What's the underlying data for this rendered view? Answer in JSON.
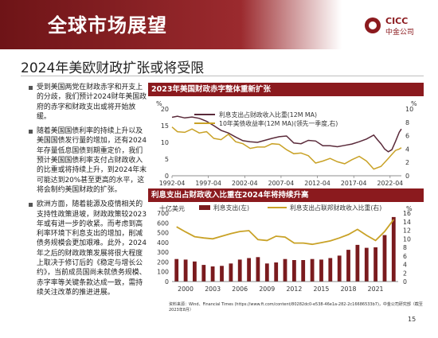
{
  "header": {
    "title": "全球市场展望",
    "logo_en": "CICC",
    "logo_cn": "中金公司"
  },
  "subtitle": "2024年美欧财政扩张或将受限",
  "bullets": [
    "受到美国两党在财政赤字和开支上的分歧，我们预计2024财年美国政府的赤字和财政支出或将开始放缓。",
    "随着美国国债利率的持续上升以及美国国债发行量的增加，还有2024年存量低息国债到期重定价，我们预计美国国债利率支付占财政收入的比重或将持续上升，到2024年末可能达到20%甚至更高的水平，这将会制约美国财政的扩张。",
    "欧洲方面，随着能源及疫情相关的支持性政策退坡，财政政策较2023年或有进一步的收紧。而考虑到高利率环境下利息支出的增加，削减债务规模会更加艰难。此外，2024年之后的财政政策发展将很大程度上取决于修订后的《稳定与增长公约》，当前成员国尚未就债务规模、赤字率等关键条款达成一致，需持续关注改革的推进进展。"
  ],
  "chart_data": [
    {
      "type": "line",
      "title": "2023年美国财政赤字整体重新扩张",
      "left_unit": "%",
      "right_unit": "%",
      "ylim_left": [
        0,
        20
      ],
      "yticks_left": [
        0,
        5,
        10,
        15,
        20
      ],
      "ylim_right": [
        0,
        10
      ],
      "yticks_right": [
        0,
        2,
        4,
        6,
        8,
        10
      ],
      "x_range": [
        1992.25,
        2023.8
      ],
      "xtick_labels": [
        "1992-04",
        "1997-04",
        "2002-04",
        "2007-04",
        "2012-04",
        "2017-04",
        "2022-04"
      ],
      "xtick_positions": [
        1992.25,
        1997.25,
        2002.25,
        2007.25,
        2012.25,
        2017.25,
        2022.25
      ],
      "series": [
        {
          "name": "利息支出占财政收入比重(12M MA)",
          "axis": "left",
          "color": "#5a2a3a",
          "x": [
            1992.25,
            1993,
            1994,
            1995,
            1996,
            1997,
            1998,
            1999,
            2000,
            2001,
            2002,
            2003,
            2004,
            2005,
            2006,
            2007,
            2008,
            2009,
            2010,
            2011,
            2012,
            2013,
            2014,
            2015,
            2016,
            2017,
            2018,
            2019,
            2020,
            2020.5,
            2021,
            2021.5,
            2022,
            2022.5,
            2023,
            2023.5,
            2023.8
          ],
          "y": [
            17.5,
            17.8,
            17.3,
            17.6,
            17.2,
            16.3,
            15.0,
            13.6,
            12.8,
            11.6,
            10.5,
            10.2,
            10.0,
            10.6,
            11.2,
            11.7,
            11.9,
            9.8,
            9.6,
            10.6,
            10.4,
            9.0,
            9.0,
            8.7,
            9.1,
            9.5,
            10.2,
            11.0,
            12.2,
            10.8,
            9.6,
            8.0,
            7.2,
            7.8,
            10.3,
            13.0,
            14.0
          ]
        },
        {
          "name": "10年美债收益率(12M MA)(领先一季度,右)",
          "axis": "right",
          "color": "#c9a227",
          "x": [
            1992.25,
            1993,
            1994,
            1995,
            1996,
            1997,
            1998,
            1999,
            2000,
            2001,
            2002,
            2003,
            2004,
            2005,
            2006,
            2007,
            2008,
            2009,
            2010,
            2011,
            2012,
            2013,
            2014,
            2015,
            2016,
            2017,
            2018,
            2019,
            2020,
            2021,
            2022,
            2022.5,
            2023,
            2023.5,
            2023.8
          ],
          "y": [
            7.3,
            6.6,
            6.5,
            7.0,
            6.4,
            6.6,
            5.6,
            5.4,
            6.2,
            5.1,
            4.8,
            4.1,
            4.3,
            4.3,
            4.8,
            4.7,
            3.9,
            3.3,
            3.4,
            3.0,
            1.9,
            2.2,
            2.6,
            2.1,
            1.8,
            2.4,
            2.9,
            2.2,
            1.0,
            1.4,
            2.6,
            3.2,
            3.8,
            4.0,
            4.2
          ]
        }
      ]
    },
    {
      "type": "bar",
      "title": "利息支出占财政收入比重在2024年将持续升高",
      "left_unit": "十亿美元",
      "right_unit": "%",
      "ylim_left": [
        0,
        700
      ],
      "yticks_left": [
        0,
        100,
        200,
        300,
        400,
        500,
        600,
        700
      ],
      "ylim_right": [
        0,
        16
      ],
      "yticks_right": [
        0,
        2,
        4,
        6,
        8,
        10,
        12,
        14,
        16
      ],
      "categories": [
        1999,
        2000,
        2001,
        2002,
        2003,
        2004,
        2005,
        2006,
        2007,
        2008,
        2009,
        2010,
        2011,
        2012,
        2013,
        2014,
        2015,
        2016,
        2017,
        2018,
        2019,
        2020,
        2021,
        2022,
        2023
      ],
      "xtick_labels": [
        "2000",
        "2003",
        "2006",
        "2009",
        "2012",
        "2015",
        "2018",
        "2021"
      ],
      "xtick_values": [
        2000,
        2003,
        2006,
        2009,
        2012,
        2015,
        2018,
        2021
      ],
      "series": [
        {
          "name": "利息支出(左)",
          "axis": "left",
          "type": "bar",
          "color": "#7a1b1e",
          "values": [
            230,
            225,
            205,
            170,
            155,
            160,
            185,
            225,
            240,
            250,
            185,
            195,
            230,
            220,
            220,
            230,
            225,
            240,
            265,
            325,
            375,
            345,
            350,
            475,
            660
          ]
        },
        {
          "name": "利息支出占联邦财政收入比重(右)",
          "axis": "right",
          "type": "line",
          "color": "#c9a227",
          "values": [
            12.8,
            11.6,
            10.5,
            10.2,
            10.0,
            10.6,
            11.2,
            11.7,
            11.9,
            9.8,
            9.6,
            10.6,
            10.4,
            9.0,
            9.0,
            8.7,
            9.1,
            9.5,
            10.2,
            11.0,
            12.2,
            10.8,
            9.6,
            11.7,
            14.5
          ]
        }
      ]
    }
  ],
  "source": "资料来源：Wind、Financial Times (https://www.ft.com/content/80282dc0-e538-46e1a-282-2c16686533b7)，中金公司研究部（截至2023年8月）",
  "page_number": "15",
  "colors": {
    "brand": "#8b1a1e",
    "accent": "#c9a227"
  }
}
